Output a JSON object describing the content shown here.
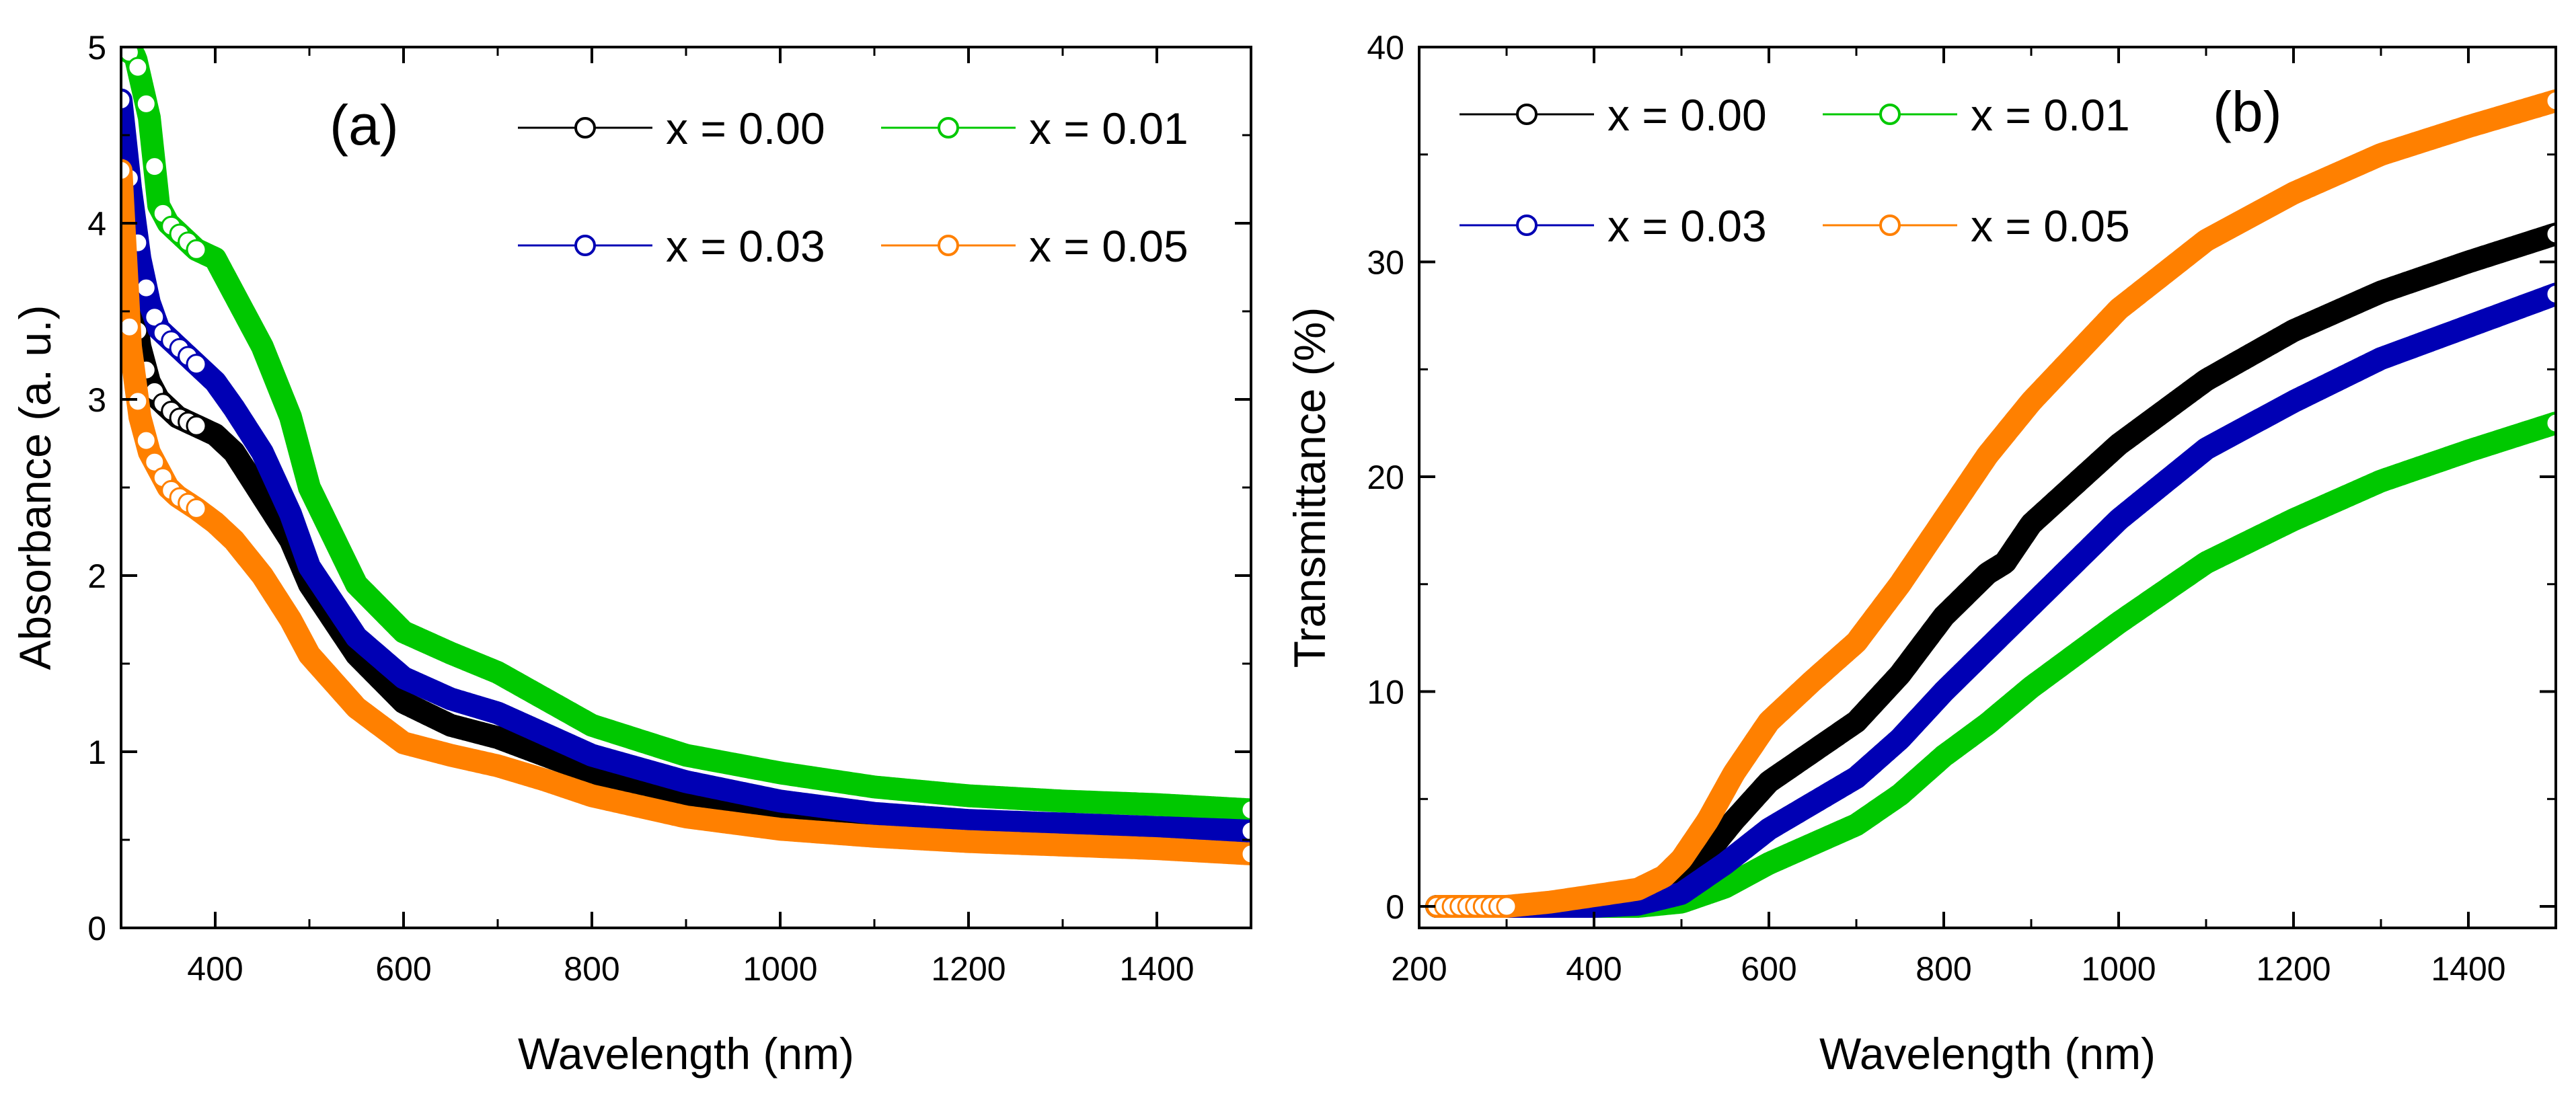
{
  "chart_data": [
    {
      "type": "line",
      "panel_label": "(a)",
      "xlabel": "Wavelength (nm)",
      "ylabel": "Absorbance (a. u.)",
      "xlim": [
        300,
        1500
      ],
      "ylim": [
        0,
        5
      ],
      "xticks": [
        "400",
        "600",
        "800",
        "1000",
        "1200",
        "1400"
      ],
      "yticks": [
        "0",
        "1",
        "2",
        "3",
        "4",
        "5"
      ],
      "xtick_values": [
        400,
        600,
        800,
        1000,
        1200,
        1400
      ],
      "ytick_values": [
        0,
        1,
        2,
        3,
        4,
        5
      ],
      "legend_placement": "top-right",
      "series": [
        {
          "name": "x = 0.00",
          "color": "#000000",
          "x": [
            300,
            310,
            320,
            330,
            340,
            350,
            360,
            380,
            400,
            420,
            450,
            480,
            500,
            550,
            600,
            650,
            700,
            750,
            800,
            900,
            1000,
            1100,
            1200,
            1300,
            1400,
            1500
          ],
          "y": [
            4.6,
            3.7,
            3.3,
            3.1,
            3.0,
            2.95,
            2.9,
            2.85,
            2.8,
            2.7,
            2.45,
            2.2,
            1.95,
            1.55,
            1.28,
            1.15,
            1.08,
            0.98,
            0.88,
            0.74,
            0.66,
            0.61,
            0.58,
            0.56,
            0.54,
            0.53
          ]
        },
        {
          "name": "x = 0.01",
          "color": "#00c800",
          "x": [
            300,
            315,
            330,
            340,
            350,
            360,
            370,
            380,
            400,
            420,
            450,
            480,
            500,
            550,
            600,
            650,
            700,
            750,
            800,
            900,
            1000,
            1100,
            1200,
            1300,
            1400,
            1500
          ],
          "y": [
            5.0,
            4.95,
            4.6,
            4.1,
            4.0,
            3.95,
            3.9,
            3.85,
            3.8,
            3.6,
            3.3,
            2.9,
            2.5,
            1.95,
            1.68,
            1.56,
            1.45,
            1.3,
            1.15,
            0.98,
            0.88,
            0.8,
            0.75,
            0.72,
            0.7,
            0.67
          ]
        },
        {
          "name": "x = 0.03",
          "color": "#0000b4",
          "x": [
            300,
            310,
            320,
            330,
            340,
            350,
            360,
            380,
            400,
            420,
            450,
            480,
            500,
            550,
            600,
            650,
            700,
            750,
            800,
            900,
            1000,
            1100,
            1200,
            1300,
            1400,
            1500
          ],
          "y": [
            4.7,
            4.2,
            3.8,
            3.55,
            3.4,
            3.35,
            3.3,
            3.2,
            3.1,
            2.95,
            2.7,
            2.35,
            2.05,
            1.65,
            1.42,
            1.3,
            1.22,
            1.1,
            0.98,
            0.83,
            0.72,
            0.65,
            0.61,
            0.59,
            0.57,
            0.55
          ]
        },
        {
          "name": "x = 0.05",
          "color": "#ff8000",
          "x": [
            300,
            310,
            320,
            330,
            340,
            350,
            360,
            380,
            400,
            420,
            450,
            480,
            500,
            550,
            600,
            650,
            700,
            750,
            800,
            900,
            1000,
            1100,
            1200,
            1300,
            1400,
            1500
          ],
          "y": [
            4.3,
            3.3,
            2.9,
            2.7,
            2.6,
            2.5,
            2.45,
            2.38,
            2.3,
            2.2,
            2.0,
            1.75,
            1.55,
            1.25,
            1.05,
            0.98,
            0.92,
            0.84,
            0.75,
            0.63,
            0.56,
            0.52,
            0.49,
            0.47,
            0.45,
            0.42
          ]
        }
      ]
    },
    {
      "type": "line",
      "panel_label": "(b)",
      "xlabel": "Wavelength (nm)",
      "ylabel": "Transmittance (%)",
      "xlim": [
        200,
        1500
      ],
      "ylim": [
        -1,
        40
      ],
      "xticks": [
        "200",
        "400",
        "600",
        "800",
        "1000",
        "1200",
        "1400"
      ],
      "yticks": [
        "0",
        "10",
        "20",
        "30",
        "40"
      ],
      "xtick_values": [
        200,
        400,
        600,
        800,
        1000,
        1200,
        1400
      ],
      "ytick_values": [
        0,
        10,
        20,
        30,
        40
      ],
      "legend_placement": "top-left",
      "series": [
        {
          "name": "x = 0.00",
          "color": "#000000",
          "x": [
            220,
            300,
            400,
            450,
            500,
            530,
            560,
            600,
            650,
            700,
            750,
            800,
            850,
            870,
            900,
            1000,
            1100,
            1200,
            1300,
            1400,
            1500
          ],
          "y": [
            0,
            0,
            0.1,
            0.3,
            1.2,
            2.5,
            4.0,
            5.8,
            7.2,
            8.6,
            10.8,
            13.5,
            15.5,
            16.0,
            17.8,
            21.5,
            24.5,
            26.8,
            28.6,
            30.0,
            31.3
          ]
        },
        {
          "name": "x = 0.01",
          "color": "#00c800",
          "x": [
            220,
            300,
            400,
            450,
            500,
            550,
            600,
            650,
            700,
            750,
            800,
            850,
            900,
            1000,
            1100,
            1200,
            1300,
            1400,
            1500
          ],
          "y": [
            0,
            0,
            0,
            0,
            0.2,
            0.9,
            2.0,
            2.9,
            3.8,
            5.2,
            7.0,
            8.5,
            10.2,
            13.2,
            16.0,
            18.0,
            19.8,
            21.2,
            22.5
          ]
        },
        {
          "name": "x = 0.03",
          "color": "#0000b4",
          "x": [
            220,
            300,
            400,
            450,
            500,
            550,
            600,
            650,
            700,
            750,
            800,
            850,
            900,
            1000,
            1100,
            1200,
            1300,
            1400,
            1500
          ],
          "y": [
            0,
            0,
            0,
            0.1,
            0.6,
            2.0,
            3.6,
            4.8,
            6.0,
            7.8,
            10.0,
            12.0,
            14.0,
            18.0,
            21.3,
            23.5,
            25.5,
            27.0,
            28.5
          ]
        },
        {
          "name": "x = 0.05",
          "color": "#ff8000",
          "x": [
            220,
            300,
            350,
            400,
            450,
            480,
            500,
            530,
            560,
            600,
            650,
            700,
            750,
            800,
            850,
            900,
            1000,
            1100,
            1200,
            1300,
            1400,
            1500
          ],
          "y": [
            0,
            0,
            0.2,
            0.5,
            0.8,
            1.4,
            2.2,
            4.0,
            6.2,
            8.6,
            10.5,
            12.3,
            15.0,
            18.0,
            21.0,
            23.5,
            27.8,
            31.0,
            33.2,
            35.0,
            36.3,
            37.5
          ]
        }
      ]
    }
  ]
}
